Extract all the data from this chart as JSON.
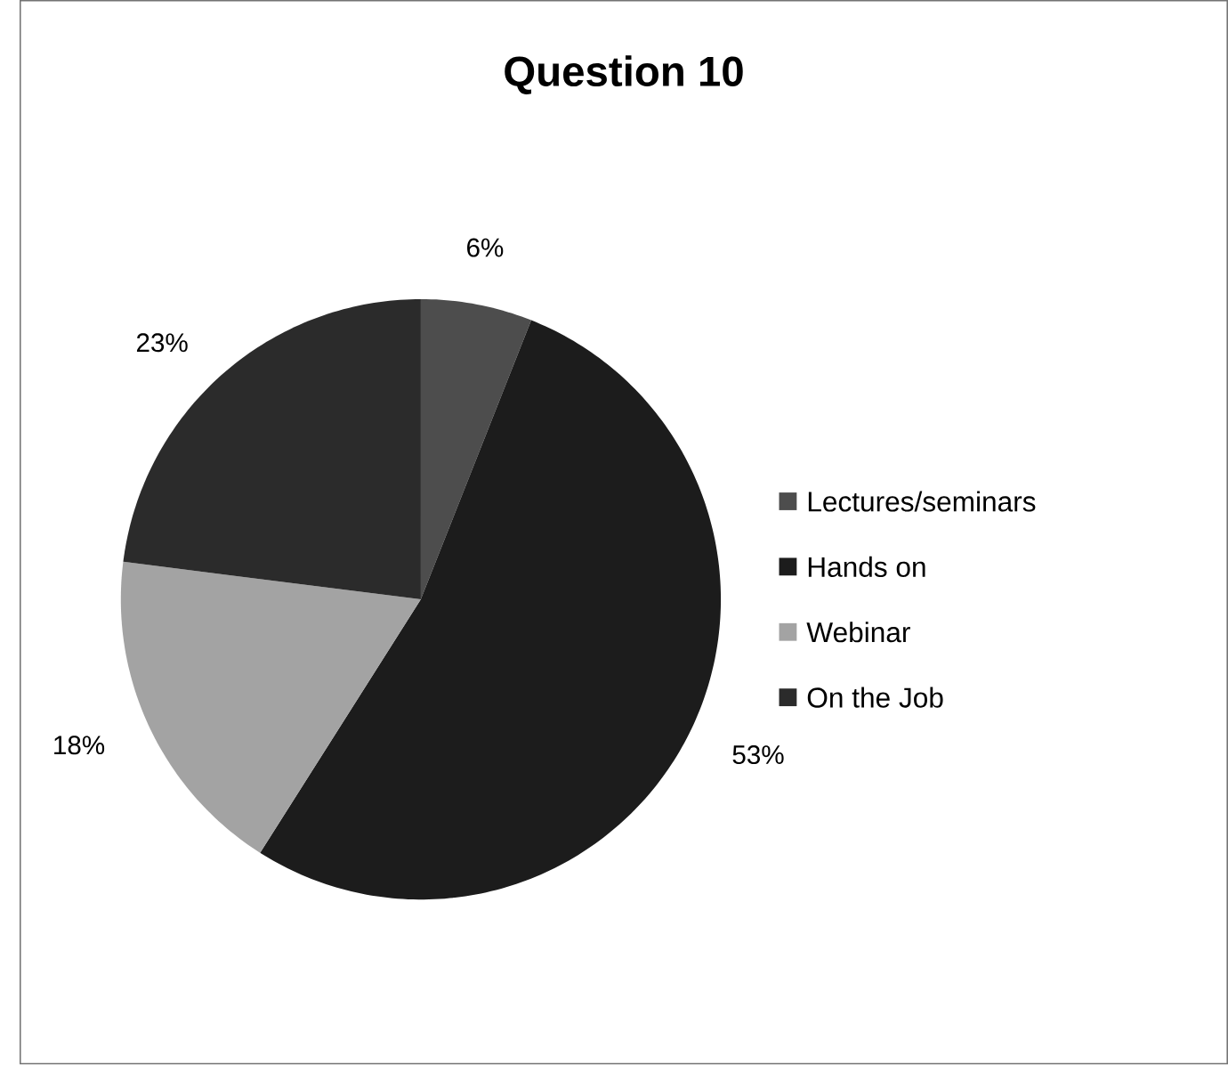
{
  "chart_data": {
    "type": "pie",
    "title": "Question 10",
    "categories": [
      "Lectures/seminars",
      "Hands on",
      "Webinar",
      "On the Job"
    ],
    "values": [
      6,
      53,
      18,
      23
    ],
    "colors": [
      "#4d4d4d",
      "#1c1c1c",
      "#a3a3a3",
      "#2b2b2b"
    ],
    "value_labels": [
      "6%",
      "53%",
      "18%",
      "23%"
    ],
    "legend": "right"
  }
}
